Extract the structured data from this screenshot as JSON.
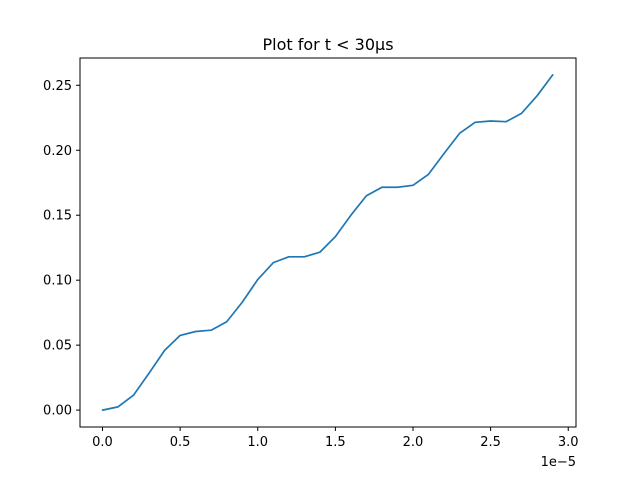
{
  "chart_data": {
    "type": "line",
    "title": "Plot for t < 30μs",
    "xlabel": "",
    "ylabel": "",
    "x_offset_label": "1e−5",
    "xlim": [
      -1.45e-06,
      3.05e-05
    ],
    "ylim": [
      -0.013,
      0.271
    ],
    "x_ticks": [
      0,
      5e-06,
      1e-05,
      1.5e-05,
      2e-05,
      2.5e-05,
      3e-05
    ],
    "x_tick_labels": [
      "0.0",
      "0.5",
      "1.0",
      "1.5",
      "2.0",
      "2.5",
      "3.0"
    ],
    "y_ticks": [
      0.0,
      0.05,
      0.1,
      0.15,
      0.2,
      0.25
    ],
    "y_tick_labels": [
      "0.00",
      "0.05",
      "0.10",
      "0.15",
      "0.20",
      "0.25"
    ],
    "grid": false,
    "series": [
      {
        "color": "#1f77b4",
        "x": [
          0,
          1e-06,
          2e-06,
          3e-06,
          4e-06,
          5e-06,
          6e-06,
          7e-06,
          8e-06,
          9e-06,
          1e-05,
          1.1e-05,
          1.2e-05,
          1.3e-05,
          1.4e-05,
          1.5e-05,
          1.6e-05,
          1.7e-05,
          1.8e-05,
          1.9e-05,
          2e-05,
          2.1e-05,
          2.2e-05,
          2.3e-05,
          2.4e-05,
          2.5e-05,
          2.6e-05,
          2.7e-05,
          2.8e-05,
          2.9e-05
        ],
        "y": [
          0.0,
          0.0025,
          0.0115,
          0.0285,
          0.046,
          0.0575,
          0.0605,
          0.0615,
          0.068,
          0.083,
          0.1005,
          0.1135,
          0.118,
          0.118,
          0.1215,
          0.1335,
          0.15,
          0.165,
          0.1715,
          0.1715,
          0.173,
          0.1815,
          0.1975,
          0.213,
          0.2215,
          0.2225,
          0.222,
          0.2285,
          0.242,
          0.258
        ]
      }
    ]
  }
}
